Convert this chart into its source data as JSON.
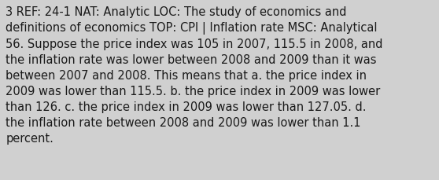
{
  "lines": [
    "3 REF: 24-1 NAT: Analytic LOC: The study of economics and",
    "definitions of economics TOP: CPI | Inflation rate MSC: Analytical",
    "56. Suppose the price index was 105 in 2007, 115.5 in 2008, and",
    "the inflation rate was lower between 2008 and 2009 than it was",
    "between 2007 and 2008. This means that a. the price index in",
    "2009 was lower than 115.5. b. the price index in 2009 was lower",
    "than 126. c. the price index in 2009 was lower than 127.05. d.",
    "the inflation rate between 2008 and 2009 was lower than 1.1",
    "percent."
  ],
  "background_color": "#d0d0d0",
  "text_color": "#1a1a1a",
  "font_size": 10.5,
  "linespacing": 1.42
}
